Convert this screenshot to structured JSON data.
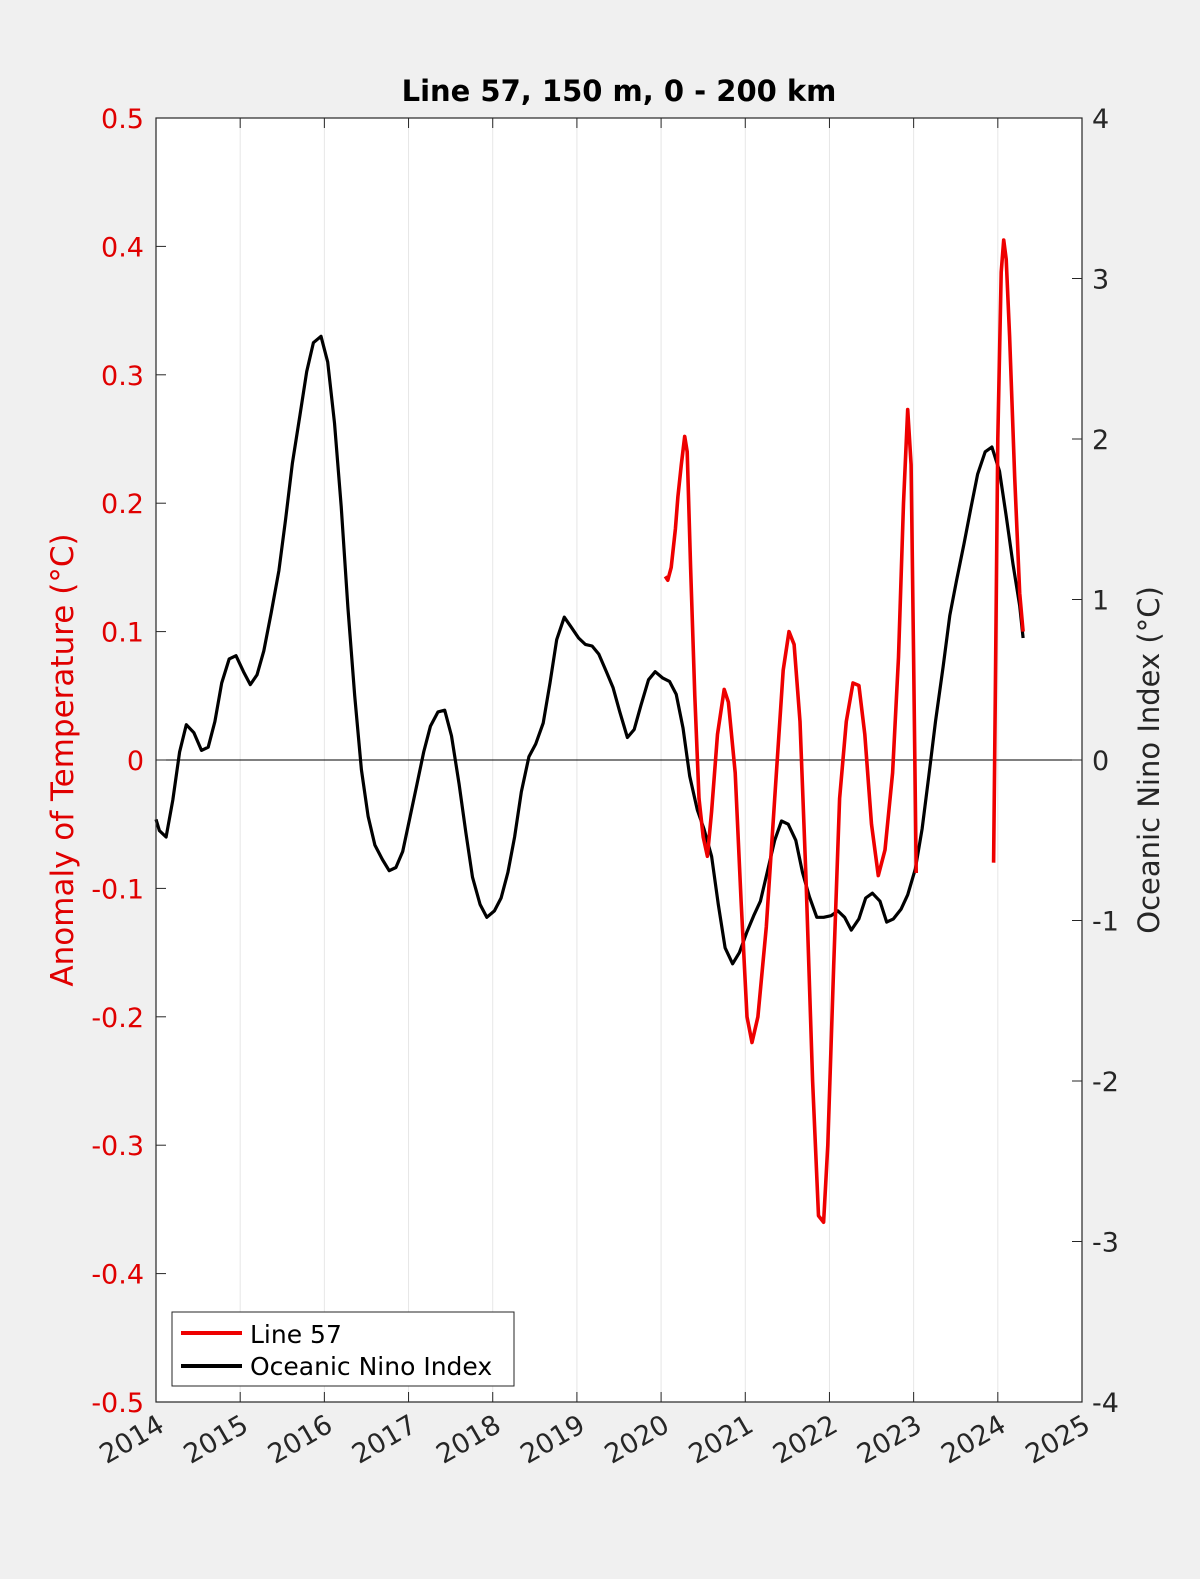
{
  "chart_data": {
    "type": "line",
    "title": "Line 57, 150 m, 0 - 200 km",
    "xlabel": "",
    "ylabel_left": "Anomaly of Temperature (°C)",
    "ylabel_right": "Oceanic Nino Index (°C)",
    "xlim": [
      2014,
      2025
    ],
    "ylim_left": [
      -0.5,
      0.5
    ],
    "ylim_right": [
      -4,
      4
    ],
    "x_ticks": [
      "2014",
      "2015",
      "2016",
      "2017",
      "2018",
      "2019",
      "2020",
      "2021",
      "2022",
      "2023",
      "2024",
      "2025"
    ],
    "y_left_ticks": [
      "-0.5",
      "-0.4",
      "-0.3",
      "-0.2",
      "-0.1",
      "0",
      "0.1",
      "0.2",
      "0.3",
      "0.4",
      "0.5"
    ],
    "y_right_ticks": [
      "-4",
      "-3",
      "-2",
      "-1",
      "0",
      "1",
      "2",
      "3",
      "4"
    ],
    "grid": "vertical",
    "zero_line": true,
    "legend_position": "bottom-left",
    "colors": {
      "left_axis": "#e00000",
      "line57": "#ee0000",
      "oni": "#000000",
      "axes": "#262626",
      "background": "#f0f0f0",
      "plot_bg": "#ffffff",
      "grid": "#e6e6e6"
    },
    "series": [
      {
        "name": "Line 57",
        "axis": "left",
        "segments": [
          [
            [
              2020.05,
              0.143
            ],
            [
              2020.08,
              0.14
            ],
            [
              2020.12,
              0.15
            ],
            [
              2020.17,
              0.18
            ],
            [
              2020.2,
              0.205
            ],
            [
              2020.24,
              0.23
            ],
            [
              2020.28,
              0.252
            ],
            [
              2020.31,
              0.24
            ],
            [
              2020.35,
              0.15
            ],
            [
              2020.4,
              0.05
            ],
            [
              2020.45,
              -0.03
            ],
            [
              2020.5,
              -0.06
            ],
            [
              2020.55,
              -0.075
            ],
            [
              2020.6,
              -0.04
            ],
            [
              2020.67,
              0.02
            ],
            [
              2020.75,
              0.055
            ],
            [
              2020.8,
              0.045
            ],
            [
              2020.88,
              -0.01
            ],
            [
              2020.95,
              -0.11
            ],
            [
              2021.02,
              -0.2
            ],
            [
              2021.08,
              -0.22
            ],
            [
              2021.15,
              -0.2
            ],
            [
              2021.25,
              -0.13
            ],
            [
              2021.35,
              -0.03
            ],
            [
              2021.45,
              0.07
            ],
            [
              2021.52,
              0.1
            ],
            [
              2021.58,
              0.09
            ],
            [
              2021.65,
              0.03
            ],
            [
              2021.72,
              -0.09
            ],
            [
              2021.8,
              -0.25
            ],
            [
              2021.87,
              -0.355
            ],
            [
              2021.93,
              -0.36
            ],
            [
              2021.98,
              -0.3
            ],
            [
              2022.05,
              -0.16
            ],
            [
              2022.12,
              -0.03
            ],
            [
              2022.2,
              0.03
            ],
            [
              2022.28,
              0.06
            ],
            [
              2022.35,
              0.058
            ],
            [
              2022.42,
              0.02
            ],
            [
              2022.5,
              -0.05
            ],
            [
              2022.58,
              -0.09
            ],
            [
              2022.66,
              -0.07
            ],
            [
              2022.75,
              -0.01
            ],
            [
              2022.82,
              0.08
            ],
            [
              2022.88,
              0.2
            ],
            [
              2022.93,
              0.273
            ],
            [
              2022.97,
              0.23
            ],
            [
              2023.0,
              0.08
            ],
            [
              2023.03,
              -0.088
            ]
          ],
          [
            [
              2023.95,
              -0.08
            ],
            [
              2023.97,
              0.05
            ],
            [
              2024.0,
              0.25
            ],
            [
              2024.04,
              0.38
            ],
            [
              2024.07,
              0.405
            ],
            [
              2024.1,
              0.39
            ],
            [
              2024.14,
              0.33
            ],
            [
              2024.2,
              0.22
            ],
            [
              2024.26,
              0.13
            ],
            [
              2024.3,
              0.1
            ]
          ]
        ]
      },
      {
        "name": "Oceanic Nino Index",
        "axis": "right",
        "points": [
          [
            2014.0,
            -0.37
          ],
          [
            2014.04,
            -0.44
          ],
          [
            2014.12,
            -0.48
          ],
          [
            2014.2,
            -0.25
          ],
          [
            2014.28,
            0.05
          ],
          [
            2014.36,
            0.22
          ],
          [
            2014.45,
            0.17
          ],
          [
            2014.54,
            0.06
          ],
          [
            2014.62,
            0.08
          ],
          [
            2014.7,
            0.24
          ],
          [
            2014.78,
            0.48
          ],
          [
            2014.87,
            0.63
          ],
          [
            2014.95,
            0.65
          ],
          [
            2015.04,
            0.55
          ],
          [
            2015.12,
            0.47
          ],
          [
            2015.2,
            0.53
          ],
          [
            2015.28,
            0.68
          ],
          [
            2015.37,
            0.92
          ],
          [
            2015.46,
            1.18
          ],
          [
            2015.54,
            1.5
          ],
          [
            2015.62,
            1.85
          ],
          [
            2015.71,
            2.15
          ],
          [
            2015.79,
            2.42
          ],
          [
            2015.87,
            2.6
          ],
          [
            2015.96,
            2.64
          ],
          [
            2016.04,
            2.48
          ],
          [
            2016.12,
            2.1
          ],
          [
            2016.2,
            1.58
          ],
          [
            2016.28,
            0.95
          ],
          [
            2016.36,
            0.4
          ],
          [
            2016.44,
            -0.06
          ],
          [
            2016.52,
            -0.35
          ],
          [
            2016.6,
            -0.53
          ],
          [
            2016.69,
            -0.62
          ],
          [
            2016.77,
            -0.69
          ],
          [
            2016.85,
            -0.67
          ],
          [
            2016.93,
            -0.57
          ],
          [
            2017.02,
            -0.35
          ],
          [
            2017.1,
            -0.15
          ],
          [
            2017.18,
            0.05
          ],
          [
            2017.26,
            0.21
          ],
          [
            2017.35,
            0.3
          ],
          [
            2017.43,
            0.31
          ],
          [
            2017.51,
            0.15
          ],
          [
            2017.6,
            -0.15
          ],
          [
            2017.68,
            -0.45
          ],
          [
            2017.76,
            -0.73
          ],
          [
            2017.85,
            -0.9
          ],
          [
            2017.93,
            -0.98
          ],
          [
            2018.02,
            -0.94
          ],
          [
            2018.1,
            -0.86
          ],
          [
            2018.18,
            -0.7
          ],
          [
            2018.26,
            -0.48
          ],
          [
            2018.34,
            -0.2
          ],
          [
            2018.43,
            0.02
          ],
          [
            2018.51,
            0.1
          ],
          [
            2018.6,
            0.23
          ],
          [
            2018.68,
            0.48
          ],
          [
            2018.76,
            0.75
          ],
          [
            2018.85,
            0.89
          ],
          [
            2018.93,
            0.83
          ],
          [
            2019.02,
            0.76
          ],
          [
            2019.1,
            0.72
          ],
          [
            2019.18,
            0.71
          ],
          [
            2019.26,
            0.66
          ],
          [
            2019.35,
            0.55
          ],
          [
            2019.43,
            0.45
          ],
          [
            2019.51,
            0.3
          ],
          [
            2019.6,
            0.14
          ],
          [
            2019.68,
            0.19
          ],
          [
            2019.76,
            0.34
          ],
          [
            2019.85,
            0.5
          ],
          [
            2019.93,
            0.55
          ],
          [
            2020.02,
            0.51
          ],
          [
            2020.1,
            0.49
          ],
          [
            2020.18,
            0.41
          ],
          [
            2020.26,
            0.2
          ],
          [
            2020.34,
            -0.1
          ],
          [
            2020.43,
            -0.31
          ],
          [
            2020.51,
            -0.43
          ],
          [
            2020.6,
            -0.6
          ],
          [
            2020.68,
            -0.9
          ],
          [
            2020.76,
            -1.17
          ],
          [
            2020.85,
            -1.27
          ],
          [
            2020.93,
            -1.2
          ],
          [
            2021.02,
            -1.07
          ],
          [
            2021.1,
            -0.97
          ],
          [
            2021.18,
            -0.88
          ],
          [
            2021.26,
            -0.7
          ],
          [
            2021.35,
            -0.5
          ],
          [
            2021.43,
            -0.38
          ],
          [
            2021.51,
            -0.4
          ],
          [
            2021.6,
            -0.5
          ],
          [
            2021.68,
            -0.7
          ],
          [
            2021.76,
            -0.85
          ],
          [
            2021.85,
            -0.98
          ],
          [
            2021.93,
            -0.98
          ],
          [
            2022.02,
            -0.97
          ],
          [
            2022.1,
            -0.94
          ],
          [
            2022.18,
            -0.98
          ],
          [
            2022.26,
            -1.06
          ],
          [
            2022.35,
            -0.99
          ],
          [
            2022.43,
            -0.86
          ],
          [
            2022.51,
            -0.83
          ],
          [
            2022.6,
            -0.88
          ],
          [
            2022.68,
            -1.01
          ],
          [
            2022.76,
            -0.99
          ],
          [
            2022.85,
            -0.93
          ],
          [
            2022.93,
            -0.84
          ],
          [
            2023.02,
            -0.68
          ],
          [
            2023.1,
            -0.43
          ],
          [
            2023.18,
            -0.1
          ],
          [
            2023.26,
            0.24
          ],
          [
            2023.35,
            0.58
          ],
          [
            2023.43,
            0.9
          ],
          [
            2023.51,
            1.12
          ],
          [
            2023.6,
            1.35
          ],
          [
            2023.68,
            1.57
          ],
          [
            2023.76,
            1.78
          ],
          [
            2023.85,
            1.92
          ],
          [
            2023.93,
            1.95
          ],
          [
            2024.02,
            1.8
          ],
          [
            2024.1,
            1.52
          ],
          [
            2024.18,
            1.22
          ],
          [
            2024.26,
            0.96
          ],
          [
            2024.3,
            0.76
          ]
        ]
      }
    ]
  }
}
